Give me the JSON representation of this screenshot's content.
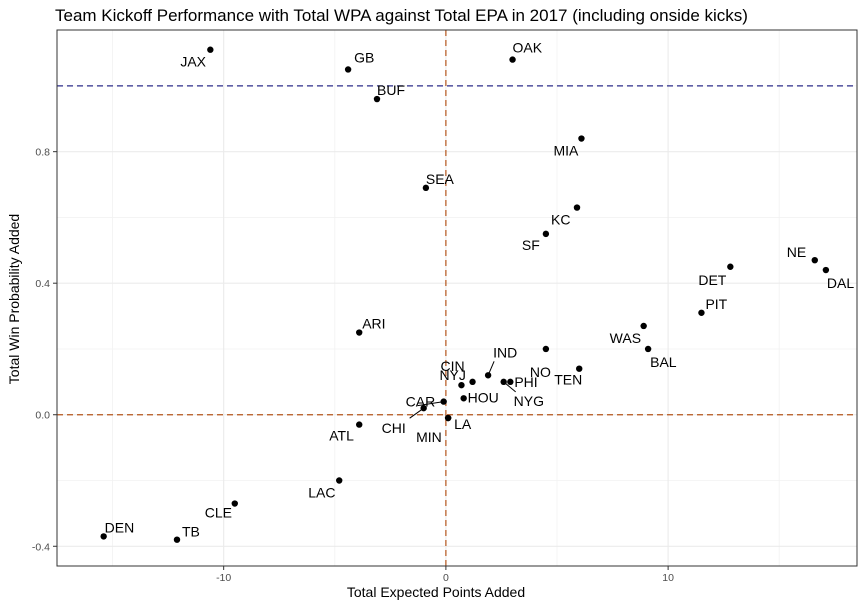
{
  "chart_data": {
    "type": "scatter",
    "title": "Team Kickoff Performance with Total WPA against Total EPA in 2017 (including onside kicks)",
    "xlabel": "Total Expected Points Added",
    "ylabel": "Total Win Probability Added",
    "xlim": [
      -17.5,
      18.5
    ],
    "ylim": [
      -0.46,
      1.17
    ],
    "x_ticks": [
      -10,
      0,
      10
    ],
    "y_ticks": [
      -0.4,
      0.0,
      0.4,
      0.8
    ],
    "x_tick_labels": [
      "-10",
      "0",
      "10"
    ],
    "y_tick_labels": [
      "-0.4",
      "0.0",
      "0.4",
      "0.8"
    ],
    "grid": true,
    "reference_lines": [
      {
        "orientation": "horizontal",
        "value": 1.0,
        "color": "#2b2b8a",
        "style": "dashed"
      },
      {
        "orientation": "horizontal",
        "value": 0.0,
        "color": "#b5561c",
        "style": "dashed"
      },
      {
        "orientation": "vertical",
        "value": 0.0,
        "color": "#b5561c",
        "style": "dashed"
      }
    ],
    "points": [
      {
        "team": "JAX",
        "x": -10.6,
        "y": 1.11
      },
      {
        "team": "OAK",
        "x": 3.0,
        "y": 1.08
      },
      {
        "team": "GB",
        "x": -4.4,
        "y": 1.05
      },
      {
        "team": "BUF",
        "x": -3.1,
        "y": 0.96
      },
      {
        "team": "MIA",
        "x": 6.1,
        "y": 0.84
      },
      {
        "team": "SEA",
        "x": -0.9,
        "y": 0.69
      },
      {
        "team": "KC",
        "x": 5.9,
        "y": 0.63
      },
      {
        "team": "SF",
        "x": 4.5,
        "y": 0.55
      },
      {
        "team": "NE",
        "x": 16.6,
        "y": 0.47
      },
      {
        "team": "DAL",
        "x": 17.1,
        "y": 0.44
      },
      {
        "team": "DET",
        "x": 12.8,
        "y": 0.45
      },
      {
        "team": "PIT",
        "x": 11.5,
        "y": 0.31
      },
      {
        "team": "WAS",
        "x": 8.9,
        "y": 0.27
      },
      {
        "team": "ARI",
        "x": -3.9,
        "y": 0.25
      },
      {
        "team": "NO",
        "x": 4.5,
        "y": 0.2
      },
      {
        "team": "BAL",
        "x": 9.1,
        "y": 0.2
      },
      {
        "team": "TEN",
        "x": 6.0,
        "y": 0.14
      },
      {
        "team": "IND",
        "x": 1.9,
        "y": 0.12
      },
      {
        "team": "CIN",
        "x": 1.2,
        "y": 0.1
      },
      {
        "team": "PHI",
        "x": 2.9,
        "y": 0.1
      },
      {
        "team": "NYG",
        "x": 2.6,
        "y": 0.1
      },
      {
        "team": "NYJ",
        "x": 0.7,
        "y": 0.09
      },
      {
        "team": "HOU",
        "x": 0.8,
        "y": 0.05
      },
      {
        "team": "CAR",
        "x": -0.1,
        "y": 0.04
      },
      {
        "team": "CHI",
        "x": -1.0,
        "y": 0.02
      },
      {
        "team": "LA",
        "x": 0.1,
        "y": -0.01
      },
      {
        "team": "MIN",
        "x": 0.1,
        "y": -0.01
      },
      {
        "team": "ATL",
        "x": -3.9,
        "y": -0.03
      },
      {
        "team": "LAC",
        "x": -4.8,
        "y": -0.2
      },
      {
        "team": "CLE",
        "x": -9.5,
        "y": -0.27
      },
      {
        "team": "DEN",
        "x": -15.4,
        "y": -0.37
      },
      {
        "team": "TB",
        "x": -12.1,
        "y": -0.38
      }
    ]
  }
}
